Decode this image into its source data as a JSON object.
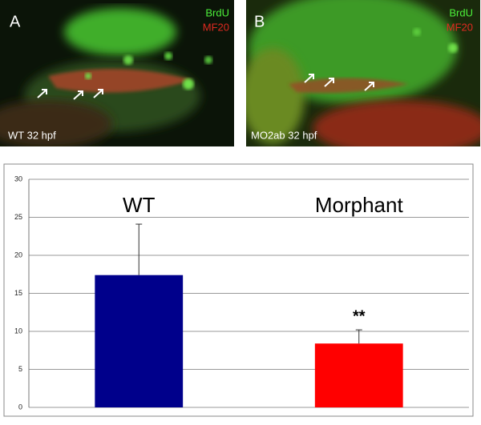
{
  "panels": [
    {
      "letter": "A",
      "label": "WT 32 hpf",
      "stain_green": "BrdU",
      "stain_red": "MF20"
    },
    {
      "letter": "B",
      "label": "MO2ab 32 hpf",
      "stain_green": "BrdU",
      "stain_red": "MF20"
    }
  ],
  "chart_data": {
    "type": "bar",
    "categories": [
      "WT",
      "Morphant"
    ],
    "values": [
      17.4,
      8.4
    ],
    "errors": [
      6.7,
      1.8
    ],
    "colors": [
      "#00008b",
      "#ff0000"
    ],
    "annotation": "**",
    "ylim": [
      0,
      30
    ],
    "yticks": [
      0,
      5,
      10,
      15,
      20,
      25,
      30
    ],
    "grid": true
  }
}
